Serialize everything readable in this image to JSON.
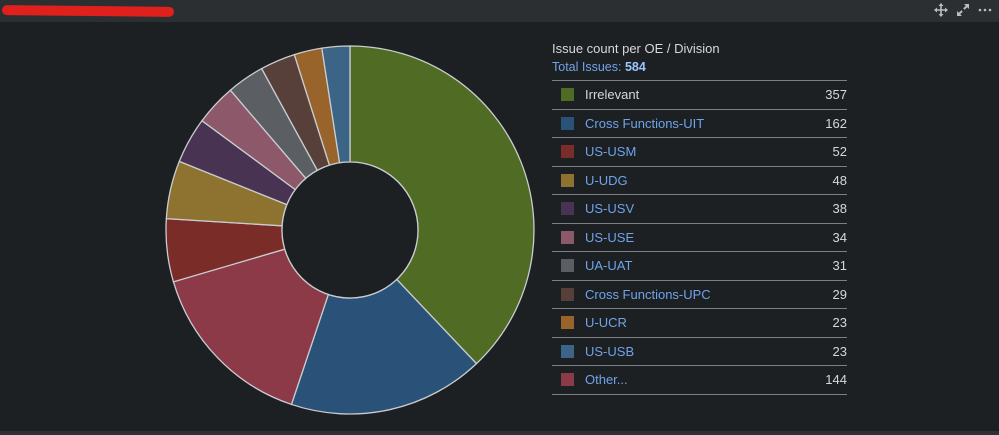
{
  "window": {
    "tools": [
      {
        "icon": "move-icon"
      },
      {
        "icon": "expand-icon"
      },
      {
        "icon": "more-icon"
      }
    ]
  },
  "legend": {
    "title": "Issue count per OE / Division",
    "total_label": "Total Issues:",
    "total_value": "584"
  },
  "chart_data": {
    "type": "pie",
    "donut": true,
    "total": 584,
    "slices": [
      {
        "label": "Irrelevant",
        "value": 357,
        "color": "#4f6b24",
        "link": false
      },
      {
        "label": "Cross Functions-UIT",
        "value": 162,
        "color": "#2a5279",
        "link": true
      },
      {
        "label": "US-USM",
        "value": 52,
        "color": "#7a2c28",
        "link": true
      },
      {
        "label": "U-UDG",
        "value": 48,
        "color": "#8d7230",
        "link": true
      },
      {
        "label": "US-USV",
        "value": 38,
        "color": "#483452",
        "link": true
      },
      {
        "label": "US-USE",
        "value": 34,
        "color": "#8d586a",
        "link": true
      },
      {
        "label": "UA-UAT",
        "value": 31,
        "color": "#5b5f64",
        "link": true
      },
      {
        "label": "Cross Functions-UPC",
        "value": 29,
        "color": "#58403a",
        "link": true
      },
      {
        "label": "U-UCR",
        "value": 23,
        "color": "#99632c",
        "link": true
      },
      {
        "label": "US-USB",
        "value": 23,
        "color": "#3b6486",
        "link": true
      },
      {
        "label": "Other...",
        "value": 144,
        "color": "#8c3a48",
        "link": true
      }
    ],
    "pie_order": [
      "Irrelevant",
      "Cross Functions-UIT",
      "Other...",
      "US-USM",
      "U-UDG",
      "US-USV",
      "US-USE",
      "UA-UAT",
      "Cross Functions-UPC",
      "U-UCR",
      "US-USB"
    ]
  }
}
